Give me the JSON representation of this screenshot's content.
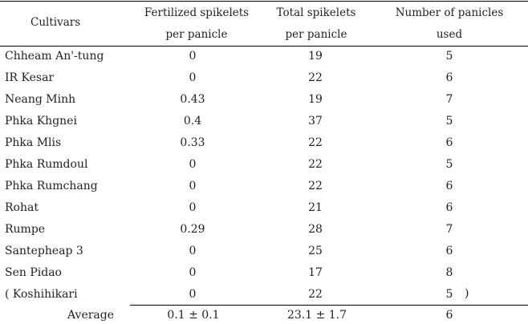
{
  "headers": {
    "cultivars": "Cultivars",
    "fertilized_line1": "Fertilized spikelets",
    "fertilized_line2": "per panicle",
    "total_line1": "Total spikelets",
    "total_line2": "per panicle",
    "panicles_line1": "Number of panicles",
    "panicles_line2": "used"
  },
  "rows": [
    {
      "cultivar": "Chheam An'-tung",
      "fertilized": "0",
      "total": "19",
      "panicles": "5"
    },
    {
      "cultivar": "IR Kesar",
      "fertilized": "0",
      "total": "22",
      "panicles": "6"
    },
    {
      "cultivar": "Neang Minh",
      "fertilized": "0.43",
      "total": "19",
      "panicles": "7"
    },
    {
      "cultivar": "Phka Khgnei",
      "fertilized": "0.4",
      "total": "37",
      "panicles": "5"
    },
    {
      "cultivar": "Phka Mlis",
      "fertilized": "0.33",
      "total": "22",
      "panicles": "6"
    },
    {
      "cultivar": "Phka Rumdoul",
      "fertilized": "0",
      "total": "22",
      "panicles": "5"
    },
    {
      "cultivar": "Phka Rumchang",
      "fertilized": "0",
      "total": "22",
      "panicles": "6"
    },
    {
      "cultivar": "Rohat",
      "fertilized": "0",
      "total": "21",
      "panicles": "6"
    },
    {
      "cultivar": "Rumpe",
      "fertilized": "0.29",
      "total": "28",
      "panicles": "7"
    },
    {
      "cultivar": "Santepheap 3",
      "fertilized": "0",
      "total": "25",
      "panicles": "6"
    },
    {
      "cultivar": "Sen Pidao",
      "fertilized": "0",
      "total": "17",
      "panicles": "8"
    },
    {
      "cultivar": "( Koshihikari",
      "fertilized": "0",
      "total": "22",
      "panicles": "5",
      "close_paren": ")"
    }
  ],
  "average": {
    "label": "Average",
    "fertilized": "0.1 ± 0.1",
    "total": "23.1 ± 1.7",
    "panicles": "6"
  }
}
